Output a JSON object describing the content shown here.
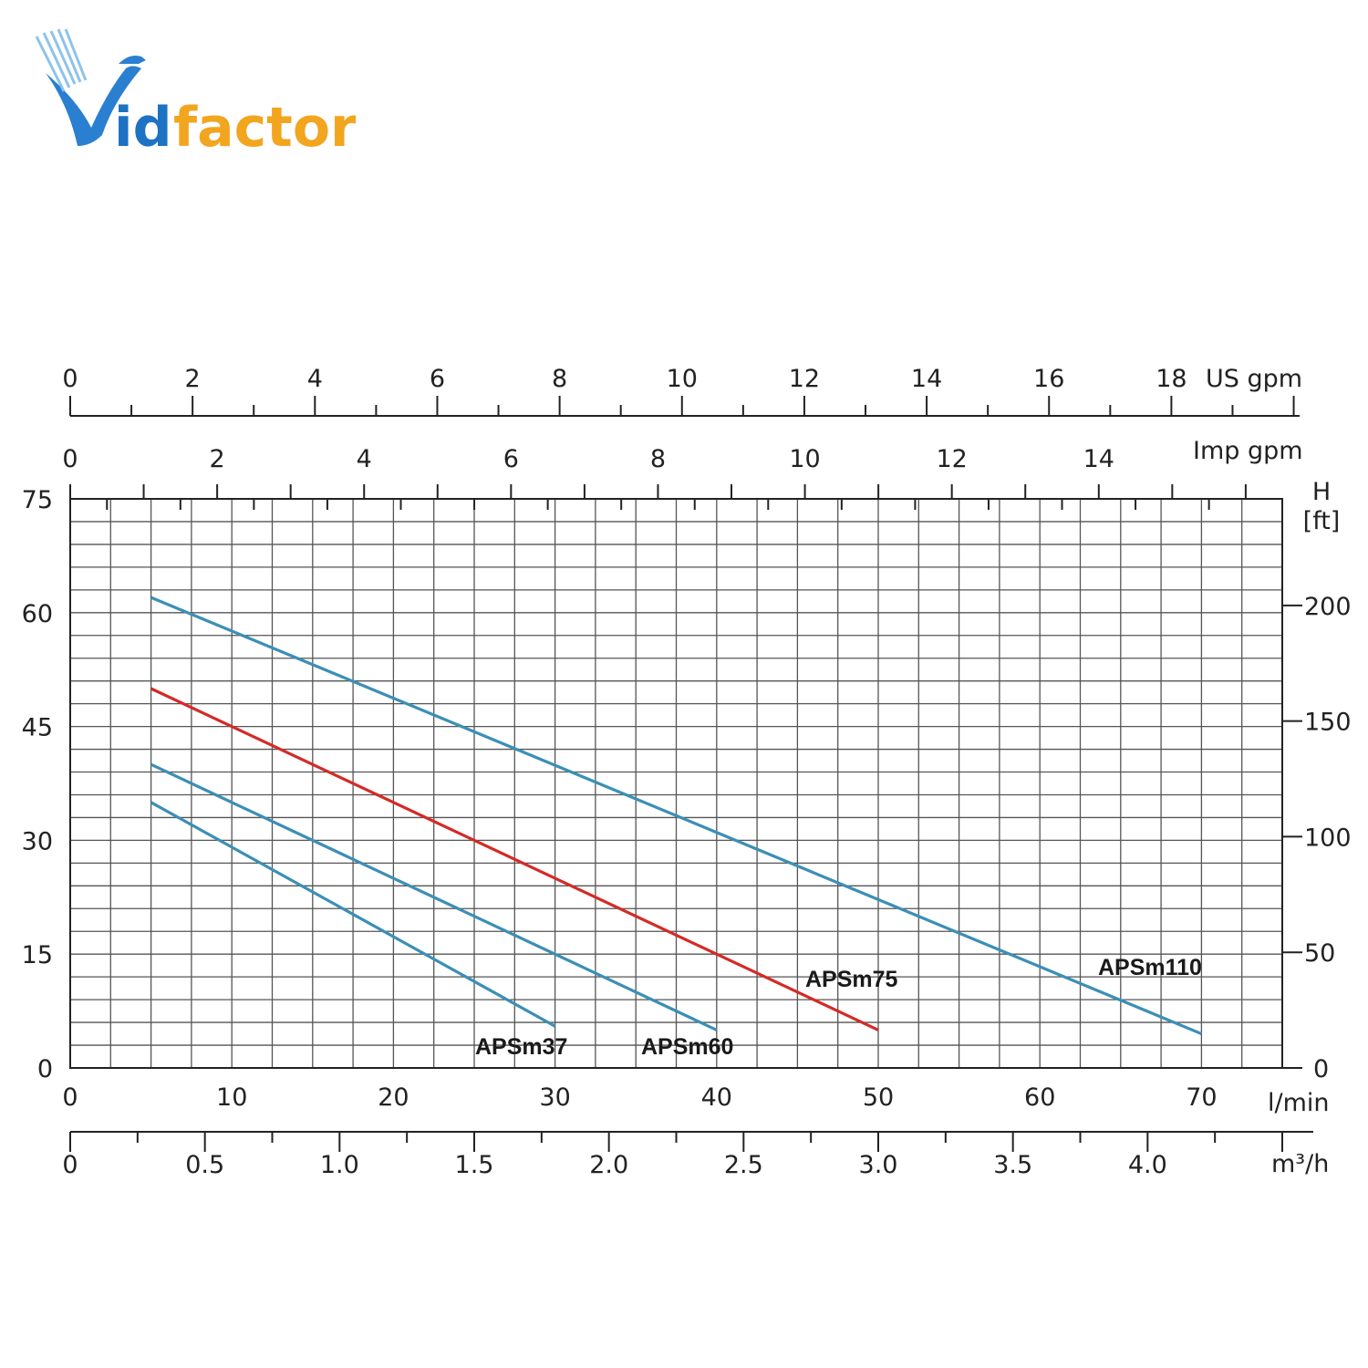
{
  "logo": {
    "text_blue": "id",
    "text_orange": "factor",
    "colors": {
      "blue": "#1d72c4",
      "orange": "#f2a51e"
    }
  },
  "chart_data": {
    "type": "line",
    "x_unit": "l/min",
    "xlim": [
      0,
      75
    ],
    "x_ticks": [
      0,
      10,
      20,
      30,
      40,
      50,
      60,
      70
    ],
    "y_left_unit": "",
    "ylim": [
      0,
      75
    ],
    "y_left_ticks": [
      "0",
      "15",
      "30",
      "45",
      "60",
      "75"
    ],
    "y_right_label": [
      "H",
      "[ft]"
    ],
    "y_right_ticks": [
      0,
      50,
      100,
      150,
      200
    ],
    "top_axis_us": {
      "unit": "US gpm",
      "ticks": [
        0,
        2,
        4,
        6,
        8,
        10,
        12,
        14,
        16,
        18
      ]
    },
    "top_axis_imp": {
      "unit": "Imp gpm",
      "ticks": [
        0,
        2,
        4,
        6,
        8,
        10,
        12,
        14
      ]
    },
    "bottom_axis_m3h": {
      "unit": "m³/h",
      "ticks": [
        "0",
        "0.5",
        "1.0",
        "1.5",
        "2.0",
        "2.5",
        "3.0",
        "3.5",
        "4.0"
      ]
    },
    "grid": true,
    "series": [
      {
        "name": "APSm37",
        "color": "#3b8fb5",
        "x": [
          5,
          30
        ],
        "y": [
          35,
          5.5
        ]
      },
      {
        "name": "APSm60",
        "color": "#3b8fb5",
        "x": [
          5,
          40
        ],
        "y": [
          40,
          5
        ]
      },
      {
        "name": "APSm75",
        "color": "#d42a26",
        "x": [
          5,
          50
        ],
        "y": [
          50,
          5
        ]
      },
      {
        "name": "APSm110",
        "color": "#3b8fb5",
        "x": [
          5,
          70
        ],
        "y": [
          62,
          4.5
        ]
      }
    ]
  }
}
